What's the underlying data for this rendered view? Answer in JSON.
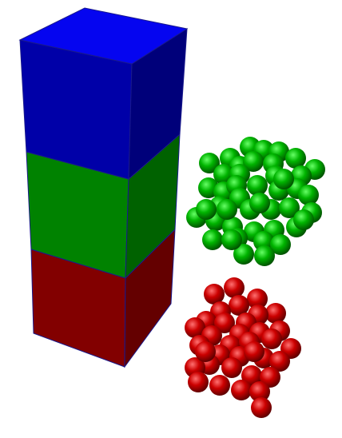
{
  "scene": {
    "background": "#ffffff",
    "tower": {
      "edge_color": "#1a1a8c",
      "blocks": [
        {
          "label": "blue-block",
          "front": "#0000a8",
          "side": "#00007a",
          "top": "#0505f0"
        },
        {
          "label": "green-block",
          "front": "#008200",
          "side": "#006200",
          "top": "#00a000"
        },
        {
          "label": "red-block",
          "front": "#820000",
          "side": "#640000",
          "top": "#a00000"
        }
      ]
    },
    "clusters": [
      {
        "label": "green-sphere-cluster",
        "base_color": "#00b400",
        "highlight": "#66ff66",
        "shadow": "#004a00"
      },
      {
        "label": "red-sphere-cluster",
        "base_color": "#cc0000",
        "highlight": "#ff7070",
        "shadow": "#550000"
      }
    ]
  }
}
